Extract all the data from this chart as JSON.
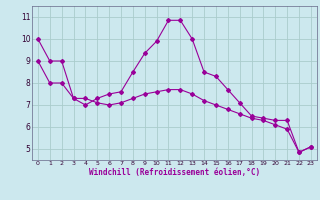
{
  "xlabel": "Windchill (Refroidissement éolien,°C)",
  "line1_x": [
    0,
    1,
    2,
    3,
    4,
    5,
    6,
    7,
    8,
    9,
    10,
    11,
    12,
    13,
    14,
    15,
    16,
    17,
    18,
    19,
    20,
    21,
    22,
    23
  ],
  "line1_y": [
    10,
    9,
    9,
    7.3,
    7.0,
    7.3,
    7.5,
    7.6,
    8.5,
    9.35,
    9.9,
    10.85,
    10.85,
    10,
    8.5,
    8.3,
    7.7,
    7.1,
    6.5,
    6.4,
    6.3,
    6.3,
    4.85,
    5.1
  ],
  "line2_x": [
    0,
    1,
    2,
    3,
    4,
    5,
    6,
    7,
    8,
    9,
    10,
    11,
    12,
    13,
    14,
    15,
    16,
    17,
    18,
    19,
    20,
    21,
    22,
    23
  ],
  "line2_y": [
    9.0,
    8.0,
    8.0,
    7.3,
    7.3,
    7.1,
    7.0,
    7.1,
    7.3,
    7.5,
    7.6,
    7.7,
    7.7,
    7.5,
    7.2,
    7.0,
    6.8,
    6.6,
    6.4,
    6.3,
    6.1,
    5.9,
    4.85,
    5.1
  ],
  "line_color": "#990099",
  "marker": "D",
  "markersize": 2,
  "bg_color": "#cce8ee",
  "grid_color": "#aacccc",
  "ylim": [
    4.5,
    11.5
  ],
  "xlim": [
    -0.5,
    23.5
  ],
  "yticks": [
    5,
    6,
    7,
    8,
    9,
    10,
    11
  ],
  "xticks": [
    0,
    1,
    2,
    3,
    4,
    5,
    6,
    7,
    8,
    9,
    10,
    11,
    12,
    13,
    14,
    15,
    16,
    17,
    18,
    19,
    20,
    21,
    22,
    23
  ]
}
